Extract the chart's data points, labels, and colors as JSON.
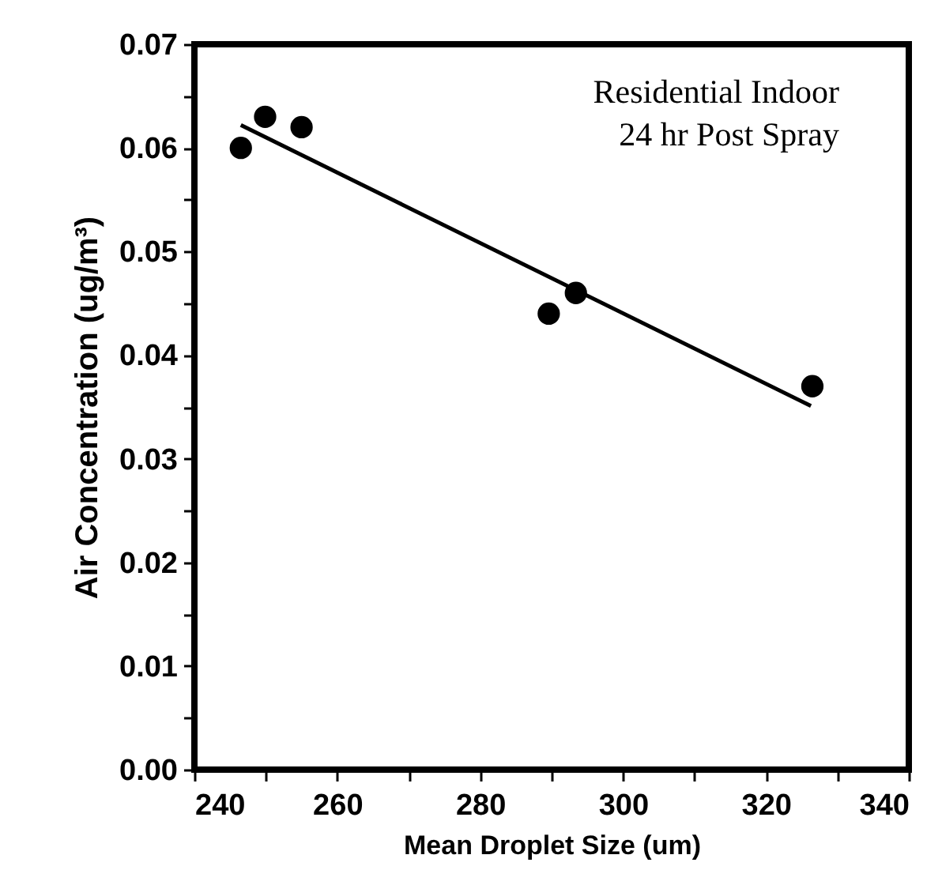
{
  "chart_data": {
    "type": "scatter",
    "xlabel": "Mean Droplet Size (um)",
    "ylabel": "Air Concentration (ug/m³)",
    "annotations": [
      "Residential Indoor",
      "24 hr Post Spray"
    ],
    "xlim": [
      240,
      340
    ],
    "ylim": [
      0,
      0.07
    ],
    "xticks": [
      240,
      {
        "value": 250,
        "label": null
      },
      260,
      {
        "value": 270,
        "label": null
      },
      280,
      {
        "value": 290,
        "label": null
      },
      300,
      {
        "value": 310,
        "label": null
      },
      320,
      {
        "value": 330,
        "label": null
      },
      340
    ],
    "yticks": [
      {
        "value": 0,
        "label": "0.00"
      },
      {
        "value": 0.005,
        "label": null
      },
      {
        "value": 0.01,
        "label": "0.01"
      },
      {
        "value": 0.015,
        "label": null
      },
      {
        "value": 0.02,
        "label": "0.02"
      },
      {
        "value": 0.025,
        "label": null
      },
      {
        "value": 0.03,
        "label": "0.03"
      },
      {
        "value": 0.035,
        "label": null
      },
      {
        "value": 0.04,
        "label": "0.04"
      },
      {
        "value": 0.045,
        "label": null
      },
      {
        "value": 0.05,
        "label": "0.05"
      },
      {
        "value": 0.055,
        "label": null
      },
      {
        "value": 0.06,
        "label": "0.06"
      },
      {
        "value": 0.065,
        "label": null
      },
      {
        "value": 0.07,
        "label": "0.07"
      }
    ],
    "grid": false,
    "series": [
      {
        "marker": "circle",
        "color": "#000000",
        "x": [
          246.5,
          249.9,
          255.0,
          289.6,
          293.4,
          326.5
        ],
        "values": [
          0.06,
          0.063,
          0.062,
          0.044,
          0.046,
          0.037
        ]
      },
      {
        "type": "line",
        "color": "#000000",
        "x": [
          246.5,
          326.3
        ],
        "values": [
          0.0622,
          0.0351
        ]
      }
    ]
  }
}
